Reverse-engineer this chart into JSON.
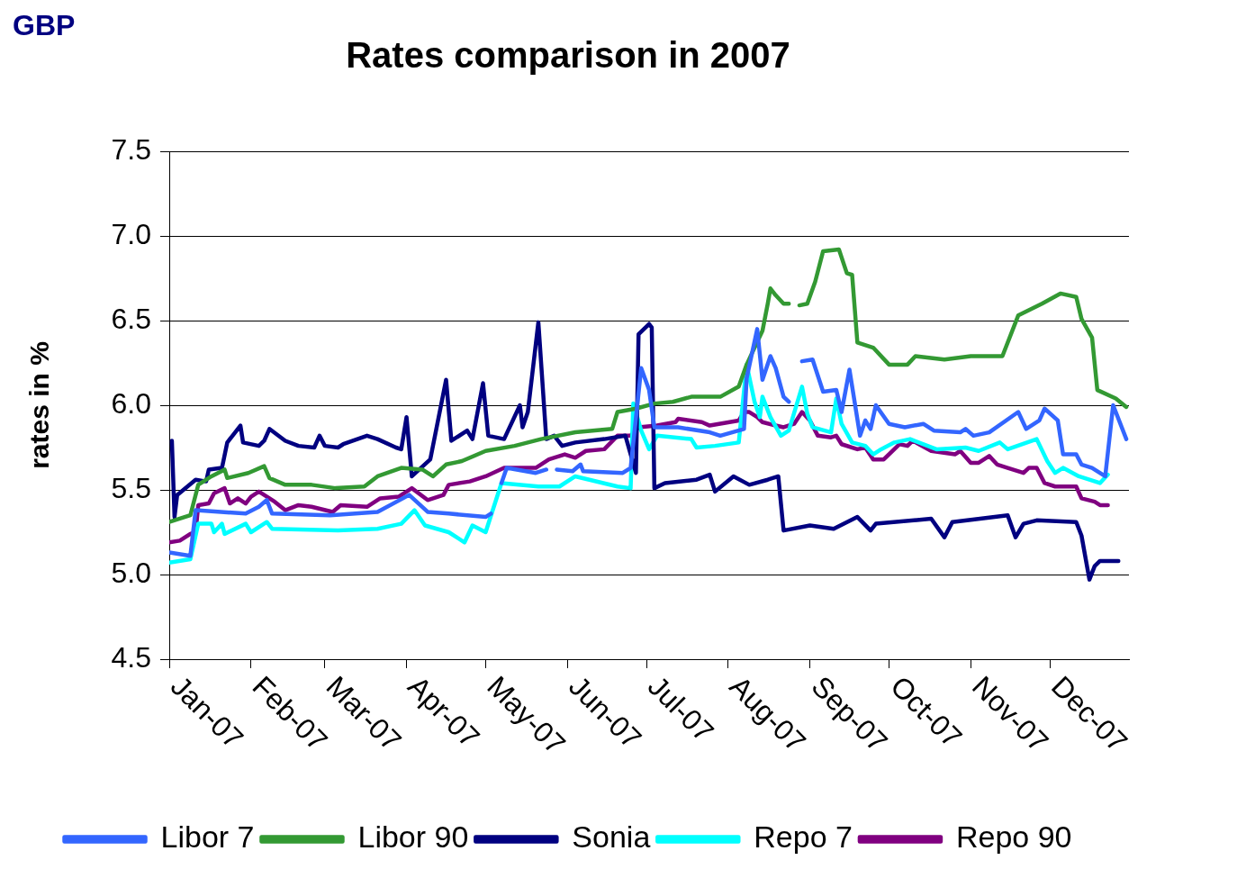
{
  "chart_data": {
    "type": "line",
    "title": "Rates comparison in 2007",
    "ylabel": "rates in %",
    "annotations": [
      "GBP"
    ],
    "xlim": [
      "2007-01-01",
      "2007-12-31"
    ],
    "xticks": [
      {
        "value": "2007-01-01",
        "label": "Jan-07"
      },
      {
        "value": "2007-02-01",
        "label": "Feb-07"
      },
      {
        "value": "2007-03-01",
        "label": "Mar-07"
      },
      {
        "value": "2007-04-01",
        "label": "Apr-07"
      },
      {
        "value": "2007-05-01",
        "label": "May-07"
      },
      {
        "value": "2007-06-01",
        "label": "Jun-07"
      },
      {
        "value": "2007-07-01",
        "label": "Jul-07"
      },
      {
        "value": "2007-08-01",
        "label": "Aug-07"
      },
      {
        "value": "2007-09-01",
        "label": "Sep-07"
      },
      {
        "value": "2007-10-01",
        "label": "Oct-07"
      },
      {
        "value": "2007-11-01",
        "label": "Nov-07"
      },
      {
        "value": "2007-12-01",
        "label": "Dec-07"
      }
    ],
    "ylim": [
      4.5,
      7.5
    ],
    "yticks": [
      {
        "value": 4.5,
        "label": "4.5"
      },
      {
        "value": 5,
        "label": "5.0"
      },
      {
        "value": 5.5,
        "label": "5.5"
      },
      {
        "value": 6,
        "label": "6.0"
      },
      {
        "value": 6.5,
        "label": "6.5"
      },
      {
        "value": 7,
        "label": "7.0"
      },
      {
        "value": 7.5,
        "label": "7.5"
      }
    ],
    "grid": "y",
    "legend": "bottom",
    "series": [
      {
        "name": "Libor 7",
        "color": "#3366ff",
        "x": [
          "2007-01-01",
          "2007-01-09",
          "2007-01-11",
          "2007-01-30",
          "2007-02-04",
          "2007-02-07",
          "2007-02-09",
          "2007-03-03",
          "2007-03-21",
          "2007-04-02",
          "2007-04-09",
          "2007-04-17",
          "2007-05-01",
          "2007-05-03",
          "2007-05-04",
          "2007-05-07",
          "2007-05-09",
          "2007-05-20",
          "2007-05-24",
          "2007-05-26",
          "2007-05-28",
          "2007-06-03",
          "2007-06-06",
          "2007-06-07",
          "2007-06-22",
          "2007-06-25",
          "2007-06-29",
          "2007-07-02",
          "2007-07-04",
          "2007-07-13",
          "2007-07-25",
          "2007-07-29",
          "2007-08-07",
          "2007-08-08",
          "2007-08-12",
          "2007-08-14",
          "2007-08-17",
          "2007-08-19",
          "2007-08-22",
          "2007-08-24",
          "2007-08-27",
          "2007-08-29",
          "2007-09-02",
          "2007-09-06",
          "2007-09-11",
          "2007-09-13",
          "2007-09-16",
          "2007-09-20",
          "2007-09-22",
          "2007-09-24",
          "2007-09-26",
          "2007-10-01",
          "2007-10-07",
          "2007-10-14",
          "2007-10-18",
          "2007-10-28",
          "2007-10-30",
          "2007-11-02",
          "2007-11-08",
          "2007-11-19",
          "2007-11-22",
          "2007-11-27",
          "2007-11-29",
          "2007-12-04",
          "2007-12-06",
          "2007-12-11",
          "2007-12-13",
          "2007-12-17",
          "2007-12-22",
          "2007-12-25",
          "2007-12-30"
        ],
        "values": [
          5.13,
          5.11,
          5.38,
          5.36,
          5.4,
          5.44,
          5.36,
          5.35,
          5.37,
          5.47,
          5.37,
          5.36,
          5.34,
          5.36,
          null,
          5.54,
          5.63,
          5.6,
          5.62,
          null,
          5.62,
          5.61,
          5.65,
          5.61,
          5.6,
          5.63,
          6.22,
          6.09,
          5.87,
          5.87,
          5.84,
          5.82,
          5.86,
          6.16,
          6.45,
          6.15,
          6.29,
          6.22,
          6.05,
          6.02,
          null,
          6.26,
          6.27,
          6.08,
          6.09,
          5.96,
          6.21,
          5.82,
          5.91,
          5.86,
          6.0,
          5.89,
          5.87,
          5.89,
          5.85,
          5.84,
          5.86,
          5.82,
          5.84,
          5.96,
          5.86,
          5.91,
          5.98,
          5.91,
          5.71,
          5.71,
          5.65,
          5.63,
          5.58,
          6.0,
          5.8
        ]
      },
      {
        "name": "Libor 90",
        "color": "#339933",
        "x": [
          "2007-01-01",
          "2007-01-09",
          "2007-01-12",
          "2007-01-17",
          "2007-01-22",
          "2007-01-23",
          "2007-01-31",
          "2007-02-06",
          "2007-02-08",
          "2007-02-14",
          "2007-02-24",
          "2007-03-05",
          "2007-03-16",
          "2007-03-21",
          "2007-03-30",
          "2007-04-07",
          "2007-04-11",
          "2007-04-16",
          "2007-04-22",
          "2007-05-01",
          "2007-05-12",
          "2007-05-22",
          "2007-06-04",
          "2007-06-18",
          "2007-06-20",
          "2007-06-27",
          "2007-07-04",
          "2007-07-11",
          "2007-07-18",
          "2007-07-29",
          "2007-08-05",
          "2007-08-08",
          "2007-08-14",
          "2007-08-16",
          "2007-08-17",
          "2007-08-19",
          "2007-08-22",
          "2007-08-24",
          "2007-08-26",
          "2007-08-28",
          "2007-08-31",
          "2007-09-03",
          "2007-09-06",
          "2007-09-12",
          "2007-09-15",
          "2007-09-17",
          "2007-09-19",
          "2007-09-25",
          "2007-10-01",
          "2007-10-08",
          "2007-10-11",
          "2007-10-22",
          "2007-11-01",
          "2007-11-13",
          "2007-11-19",
          "2007-11-28",
          "2007-12-05",
          "2007-12-11",
          "2007-12-13",
          "2007-12-17",
          "2007-12-19",
          "2007-12-26",
          "2007-12-30"
        ],
        "values": [
          5.31,
          5.35,
          5.53,
          5.58,
          5.62,
          5.57,
          5.6,
          5.64,
          5.57,
          5.53,
          5.53,
          5.51,
          5.52,
          5.58,
          5.63,
          5.62,
          5.58,
          5.65,
          5.67,
          5.73,
          5.76,
          5.8,
          5.84,
          5.86,
          5.96,
          5.98,
          6.01,
          6.02,
          6.05,
          6.05,
          6.11,
          6.24,
          6.44,
          6.6,
          6.69,
          6.65,
          6.6,
          6.6,
          null,
          6.59,
          6.6,
          6.73,
          6.91,
          6.92,
          6.78,
          6.77,
          6.37,
          6.34,
          6.24,
          6.24,
          6.29,
          6.27,
          6.29,
          6.29,
          6.53,
          6.6,
          6.66,
          6.64,
          6.51,
          6.4,
          6.09,
          6.04,
          5.99
        ]
      },
      {
        "name": "Sonia",
        "color": "#000080",
        "x": [
          "2007-01-02",
          "2007-01-03",
          "2007-01-04",
          "2007-01-11",
          "2007-01-15",
          "2007-01-16",
          "2007-01-21",
          "2007-01-23",
          "2007-01-28",
          "2007-01-29",
          "2007-02-04",
          "2007-02-06",
          "2007-02-08",
          "2007-02-14",
          "2007-02-19",
          "2007-02-25",
          "2007-02-27",
          "2007-03-01",
          "2007-03-06",
          "2007-03-08",
          "2007-03-17",
          "2007-03-21",
          "2007-03-28",
          "2007-03-30",
          "2007-04-01",
          "2007-04-03",
          "2007-04-10",
          "2007-04-16",
          "2007-04-18",
          "2007-04-24",
          "2007-04-26",
          "2007-04-30",
          "2007-05-02",
          "2007-05-08",
          "2007-05-14",
          "2007-05-15",
          "2007-05-17",
          "2007-05-21",
          "2007-05-24",
          "2007-05-27",
          "2007-05-30",
          "2007-06-04",
          "2007-06-15",
          "2007-06-23",
          "2007-06-27",
          "2007-06-28",
          "2007-07-02",
          "2007-07-03",
          "2007-07-04",
          "2007-07-08",
          "2007-07-20",
          "2007-07-25",
          "2007-07-27",
          "2007-08-03",
          "2007-08-09",
          "2007-08-16",
          "2007-08-20",
          "2007-08-22",
          "2007-09-01",
          "2007-09-10",
          "2007-09-19",
          "2007-09-24",
          "2007-09-26",
          "2007-10-17",
          "2007-10-22",
          "2007-10-25",
          "2007-11-15",
          "2007-11-18",
          "2007-11-21",
          "2007-11-26",
          "2007-12-11",
          "2007-12-13",
          "2007-12-16",
          "2007-12-18",
          "2007-12-20",
          "2007-12-27"
        ],
        "values": [
          5.79,
          5.34,
          5.47,
          5.56,
          5.55,
          5.62,
          5.63,
          5.78,
          5.88,
          5.78,
          5.76,
          5.79,
          5.86,
          5.79,
          5.76,
          5.75,
          5.82,
          5.76,
          5.75,
          5.77,
          5.82,
          5.8,
          5.75,
          5.74,
          5.93,
          5.58,
          5.68,
          6.15,
          5.79,
          5.85,
          5.8,
          6.13,
          5.82,
          5.8,
          6.0,
          5.87,
          5.96,
          6.49,
          5.8,
          5.82,
          5.76,
          5.78,
          5.8,
          5.82,
          5.6,
          6.42,
          6.48,
          6.46,
          5.51,
          5.54,
          5.56,
          5.59,
          5.49,
          5.58,
          5.53,
          5.56,
          5.58,
          5.26,
          5.29,
          5.27,
          5.34,
          5.26,
          5.3,
          5.33,
          5.22,
          5.31,
          5.35,
          5.22,
          5.3,
          5.32,
          5.31,
          5.23,
          4.97,
          5.05,
          5.08,
          5.08
        ]
      },
      {
        "name": "Repo 7",
        "color": "#00ffff",
        "x": [
          "2007-01-01",
          "2007-01-09",
          "2007-01-12",
          "2007-01-17",
          "2007-01-18",
          "2007-01-21",
          "2007-01-22",
          "2007-01-30",
          "2007-02-01",
          "2007-02-07",
          "2007-02-09",
          "2007-03-06",
          "2007-03-21",
          "2007-03-30",
          "2007-04-04",
          "2007-04-08",
          "2007-04-17",
          "2007-04-23",
          "2007-04-26",
          "2007-05-01",
          "2007-05-07",
          "2007-05-21",
          "2007-05-29",
          "2007-06-04",
          "2007-06-20",
          "2007-06-25",
          "2007-06-26",
          "2007-06-29",
          "2007-07-02",
          "2007-07-05",
          "2007-07-18",
          "2007-07-20",
          "2007-07-27",
          "2007-08-05",
          "2007-08-08",
          "2007-08-11",
          "2007-08-13",
          "2007-08-14",
          "2007-08-17",
          "2007-08-21",
          "2007-08-24",
          "2007-08-29",
          "2007-08-31",
          "2007-09-02",
          "2007-09-09",
          "2007-09-11",
          "2007-09-13",
          "2007-09-17",
          "2007-09-22",
          "2007-09-25",
          "2007-09-28",
          "2007-10-03",
          "2007-10-09",
          "2007-10-19",
          "2007-10-30",
          "2007-11-04",
          "2007-11-12",
          "2007-11-15",
          "2007-11-26",
          "2007-11-30",
          "2007-12-03",
          "2007-12-06",
          "2007-12-12",
          "2007-12-20",
          "2007-12-23"
        ],
        "values": [
          5.07,
          5.09,
          5.3,
          5.3,
          5.25,
          5.3,
          5.24,
          5.3,
          5.25,
          5.31,
          5.27,
          5.26,
          5.27,
          5.3,
          5.38,
          5.29,
          5.25,
          5.19,
          5.29,
          5.25,
          5.54,
          5.52,
          5.52,
          5.58,
          5.52,
          5.51,
          6.01,
          5.85,
          5.74,
          5.82,
          5.8,
          5.75,
          5.76,
          5.78,
          6.24,
          6.02,
          5.93,
          6.05,
          5.93,
          5.82,
          5.85,
          6.11,
          5.95,
          5.87,
          5.84,
          6.04,
          5.89,
          5.78,
          5.76,
          5.71,
          5.74,
          5.78,
          5.8,
          5.74,
          5.75,
          5.73,
          5.78,
          5.74,
          5.8,
          5.67,
          5.6,
          5.63,
          5.58,
          5.54,
          5.59
        ]
      },
      {
        "name": "Repo 90",
        "color": "#800080",
        "x": [
          "2007-01-01",
          "2007-01-05",
          "2007-01-09",
          "2007-01-11",
          "2007-01-12",
          "2007-01-16",
          "2007-01-18",
          "2007-01-22",
          "2007-01-24",
          "2007-01-27",
          "2007-01-30",
          "2007-02-01",
          "2007-02-04",
          "2007-02-08",
          "2007-02-10",
          "2007-02-14",
          "2007-02-19",
          "2007-02-24",
          "2007-03-04",
          "2007-03-07",
          "2007-03-17",
          "2007-03-22",
          "2007-03-29",
          "2007-04-03",
          "2007-04-09",
          "2007-04-15",
          "2007-04-17",
          "2007-04-25",
          "2007-05-01",
          "2007-05-08",
          "2007-05-20",
          "2007-05-25",
          "2007-05-31",
          "2007-06-04",
          "2007-06-08",
          "2007-06-15",
          "2007-06-20",
          "2007-06-25",
          "2007-06-28",
          "2007-07-05",
          "2007-07-12",
          "2007-07-13",
          "2007-07-22",
          "2007-07-25",
          "2007-08-05",
          "2007-08-07",
          "2007-08-09",
          "2007-08-12",
          "2007-08-14",
          "2007-08-19",
          "2007-08-22",
          "2007-08-26",
          "2007-08-29",
          "2007-09-01",
          "2007-09-04",
          "2007-09-09",
          "2007-09-11",
          "2007-09-13",
          "2007-09-19",
          "2007-09-22",
          "2007-09-25",
          "2007-09-29",
          "2007-10-05",
          "2007-10-08",
          "2007-10-10",
          "2007-10-17",
          "2007-10-26",
          "2007-10-28",
          "2007-11-01",
          "2007-11-04",
          "2007-11-08",
          "2007-11-11",
          "2007-11-15",
          "2007-11-21",
          "2007-11-23",
          "2007-11-26",
          "2007-11-29",
          "2007-12-03",
          "2007-12-11",
          "2007-12-13",
          "2007-12-18",
          "2007-12-20",
          "2007-12-23"
        ],
        "values": [
          5.19,
          5.2,
          5.24,
          5.25,
          5.41,
          5.42,
          5.48,
          5.51,
          5.42,
          5.45,
          5.42,
          5.46,
          5.49,
          5.45,
          5.43,
          5.38,
          5.41,
          5.4,
          5.37,
          5.41,
          5.4,
          5.45,
          5.46,
          5.51,
          5.44,
          5.47,
          5.53,
          5.55,
          5.58,
          5.63,
          5.63,
          5.68,
          5.71,
          5.69,
          5.73,
          5.74,
          5.82,
          5.82,
          5.87,
          5.88,
          5.9,
          5.92,
          5.9,
          5.88,
          5.91,
          5.96,
          5.96,
          5.93,
          5.9,
          5.88,
          5.87,
          5.89,
          5.96,
          5.91,
          5.82,
          5.81,
          5.82,
          5.77,
          5.74,
          5.75,
          5.68,
          5.68,
          5.77,
          5.76,
          5.79,
          5.73,
          5.71,
          5.73,
          5.66,
          5.66,
          5.7,
          5.65,
          5.63,
          5.6,
          5.63,
          5.63,
          5.54,
          5.52,
          5.52,
          5.45,
          5.43,
          5.41,
          5.41
        ]
      }
    ]
  }
}
